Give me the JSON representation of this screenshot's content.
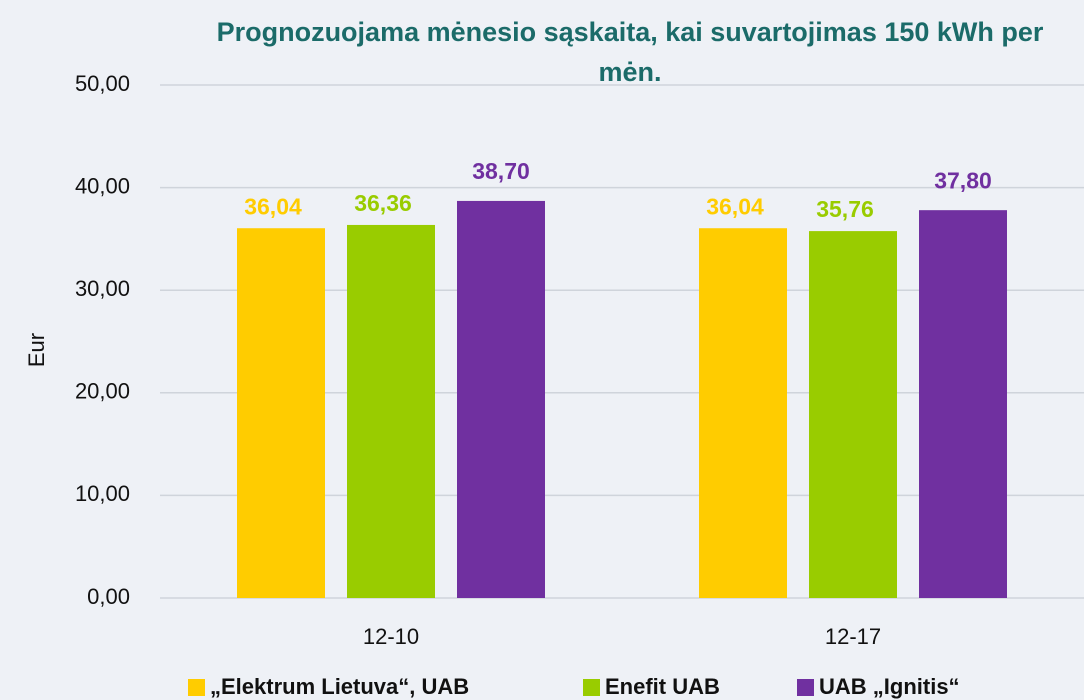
{
  "chart_data": {
    "type": "bar",
    "title": "Prognozuojama mėnesio sąskaita, kai suvartojimas 150 kWh per mėn.",
    "y_label": "Eur",
    "categories": [
      "12-10",
      "12-17"
    ],
    "series": [
      {
        "name": "„Elektrum Lietuva“, UAB",
        "color": "#ffcc00",
        "values": [
          36.04,
          36.04
        ],
        "value_labels": [
          "36,04",
          "36,04"
        ]
      },
      {
        "name": "Enefit UAB",
        "color": "#99cc00",
        "values": [
          36.36,
          35.76
        ],
        "value_labels": [
          "36,36",
          "35,76"
        ]
      },
      {
        "name": "UAB „Ignitis“",
        "color": "#7030a0",
        "values": [
          38.7,
          37.8
        ],
        "value_labels": [
          "38,70",
          "37,80"
        ]
      }
    ],
    "ylim": [
      0,
      50
    ],
    "yticks": [
      {
        "value": 0,
        "label": "0,00"
      },
      {
        "value": 10,
        "label": "10,00"
      },
      {
        "value": 20,
        "label": "20,00"
      },
      {
        "value": 30,
        "label": "30,00"
      },
      {
        "value": 40,
        "label": "40,00"
      },
      {
        "value": 50,
        "label": "50,00"
      }
    ],
    "grid": true,
    "legend": "bottom"
  }
}
